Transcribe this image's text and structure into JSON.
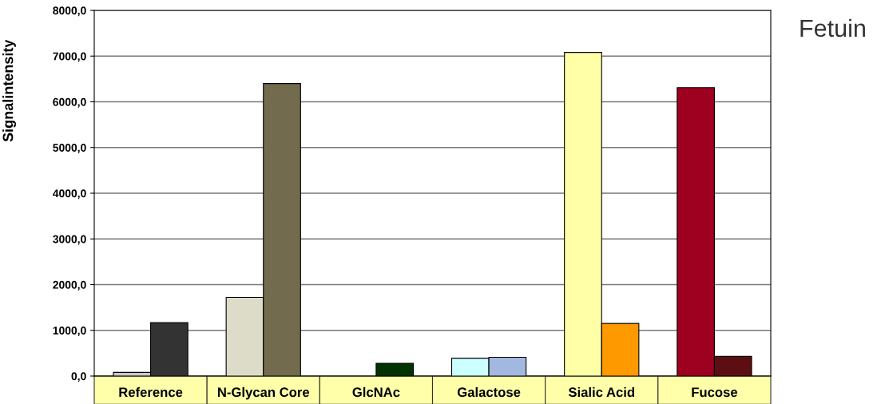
{
  "chart_data": {
    "type": "bar",
    "title": "Fetuin",
    "ylabel": "Signalintensity",
    "categories": [
      "Reference",
      "N-Glycan Core",
      "GlcNAc",
      "Galactose",
      "Sialic Acid",
      "Fucose"
    ],
    "series": [
      {
        "colors": [
          "#c8c8c8",
          "#dcdcc8",
          "#003300",
          "#ccffff",
          "#ffffa8",
          "#9e0020"
        ],
        "values": [
          80,
          1720,
          null,
          390,
          7080,
          6310
        ]
      },
      {
        "colors": [
          "#333333",
          "#736b4e",
          "#003300",
          "#a3b8e0",
          "#ff9900",
          "#5c0e10"
        ],
        "values": [
          1170,
          6400,
          280,
          410,
          1150,
          430
        ]
      }
    ],
    "ylim": [
      0,
      8000
    ],
    "yticks": [
      {
        "value": 0,
        "label": "0,0"
      },
      {
        "value": 1000,
        "label": "1000,0"
      },
      {
        "value": 2000,
        "label": "2000,0"
      },
      {
        "value": 3000,
        "label": "3000,0"
      },
      {
        "value": 4000,
        "label": "4000,0"
      },
      {
        "value": 5000,
        "label": "5000,0"
      },
      {
        "value": 6000,
        "label": "6000,0"
      },
      {
        "value": 7000,
        "label": "7000,0"
      },
      {
        "value": 8000,
        "label": "8000,0"
      }
    ],
    "grid": "y",
    "legend": false
  }
}
